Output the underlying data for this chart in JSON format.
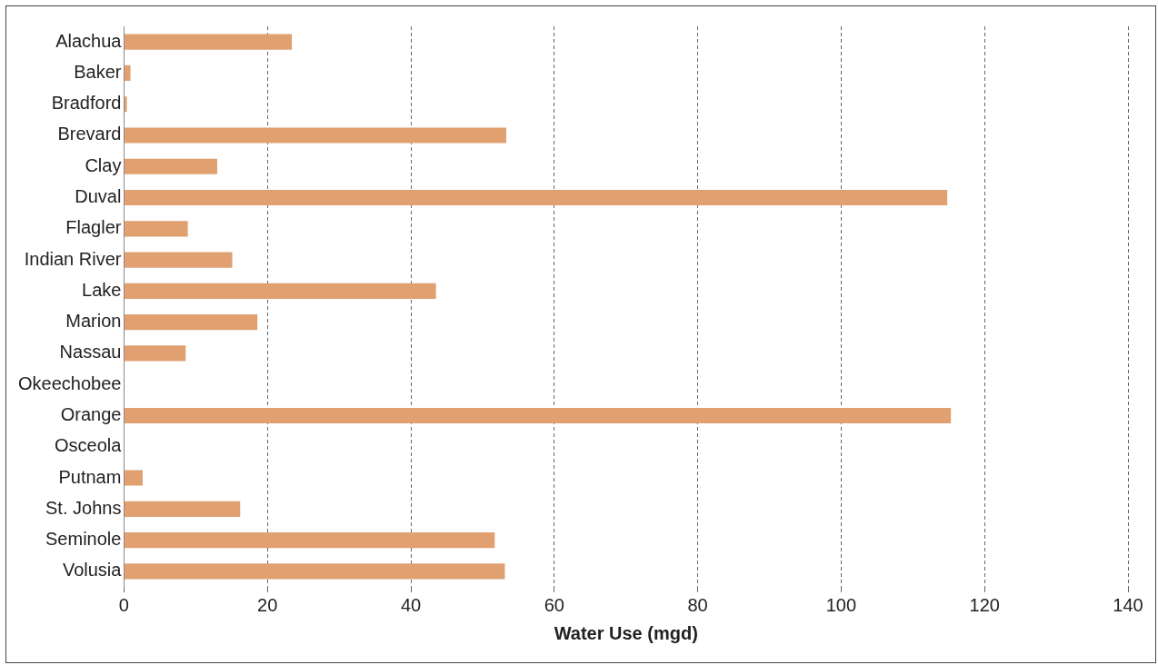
{
  "chart_data": {
    "type": "bar",
    "orientation": "horizontal",
    "xlabel": "Water Use (mgd)",
    "categories": [
      "Alachua",
      "Baker",
      "Bradford",
      "Brevard",
      "Clay",
      "Duval",
      "Flagler",
      "Indian River",
      "Lake",
      "Marion",
      "Nassau",
      "Okeechobee",
      "Orange",
      "Osceola",
      "Putnam",
      "St. Johns",
      "Seminole",
      "Volusia"
    ],
    "values": [
      23.4,
      0.9,
      0.4,
      53.3,
      13.0,
      114.8,
      8.9,
      15.1,
      43.5,
      18.6,
      8.6,
      0,
      115.3,
      0,
      2.6,
      16.2,
      51.7,
      53.1
    ],
    "color": "#e0a070",
    "xlim": [
      0,
      140
    ],
    "xticks": [
      0,
      20,
      40,
      60,
      80,
      100,
      120,
      140
    ],
    "grid": "x",
    "legend": false
  }
}
